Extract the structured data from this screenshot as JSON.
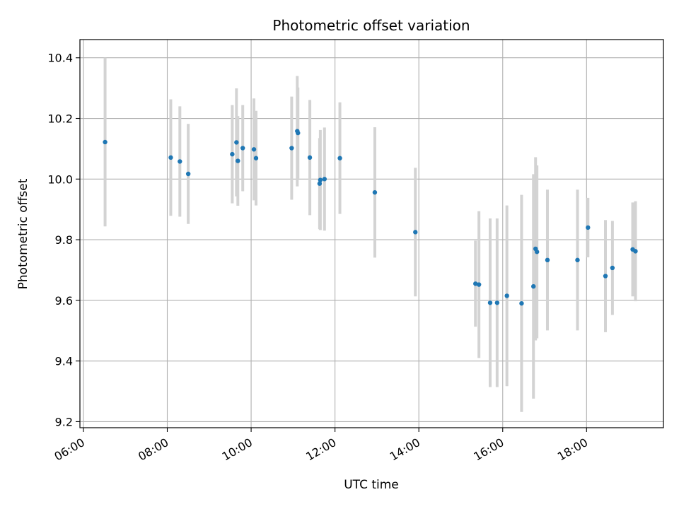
{
  "chart_data": {
    "type": "scatter",
    "title": "Photometric offset variation",
    "xlabel": "UTC time",
    "ylabel": "Photometric offset",
    "x_ticks": [
      "06:00",
      "08:00",
      "10:00",
      "12:00",
      "14:00",
      "16:00",
      "18:00"
    ],
    "y_ticks": [
      "9.2",
      "9.4",
      "9.6",
      "9.8",
      "10.0",
      "10.2",
      "10.4"
    ],
    "xlim": [
      "05:55",
      "19:50"
    ],
    "ylim": [
      9.18,
      10.46
    ],
    "grid": true,
    "colors": {
      "point": "#1f77b4",
      "errorbar": "#d3d3d3",
      "grid": "#b0b0b0",
      "axes": "#000000"
    },
    "series": [
      {
        "points": [
          {
            "x": "06:31",
            "y": 10.122,
            "err": 0.278
          },
          {
            "x": "08:05",
            "y": 10.071,
            "err": 0.192
          },
          {
            "x": "08:18",
            "y": 10.058,
            "err": 0.182
          },
          {
            "x": "08:30",
            "y": 10.017,
            "err": 0.165
          },
          {
            "x": "09:33",
            "y": 10.082,
            "err": 0.162
          },
          {
            "x": "09:39",
            "y": 10.121,
            "err": 0.178
          },
          {
            "x": "09:41",
            "y": 10.06,
            "err": 0.148
          },
          {
            "x": "09:48",
            "y": 10.102,
            "err": 0.142
          },
          {
            "x": "10:04",
            "y": 10.098,
            "err": 0.168
          },
          {
            "x": "10:07",
            "y": 10.069,
            "err": 0.156
          },
          {
            "x": "10:58",
            "y": 10.102,
            "err": 0.17
          },
          {
            "x": "11:06",
            "y": 10.158,
            "err": 0.182
          },
          {
            "x": "11:07",
            "y": 10.152,
            "err": 0.15
          },
          {
            "x": "11:24",
            "y": 10.071,
            "err": 0.19
          },
          {
            "x": "11:38",
            "y": 9.985,
            "err": 0.15
          },
          {
            "x": "11:39",
            "y": 9.997,
            "err": 0.165
          },
          {
            "x": "11:45",
            "y": 10.0,
            "err": 0.17
          },
          {
            "x": "12:07",
            "y": 10.069,
            "err": 0.184
          },
          {
            "x": "12:57",
            "y": 9.956,
            "err": 0.215
          },
          {
            "x": "13:55",
            "y": 9.825,
            "err": 0.212
          },
          {
            "x": "15:21",
            "y": 9.655,
            "err": 0.142
          },
          {
            "x": "15:26",
            "y": 9.652,
            "err": 0.242
          },
          {
            "x": "15:42",
            "y": 9.592,
            "err": 0.278
          },
          {
            "x": "15:52",
            "y": 9.592,
            "err": 0.278
          },
          {
            "x": "16:06",
            "y": 9.615,
            "err": 0.298
          },
          {
            "x": "16:27",
            "y": 9.59,
            "err": 0.358
          },
          {
            "x": "16:44",
            "y": 9.646,
            "err": 0.37
          },
          {
            "x": "16:47",
            "y": 9.77,
            "err": 0.302
          },
          {
            "x": "16:49",
            "y": 9.76,
            "err": 0.285
          },
          {
            "x": "17:04",
            "y": 9.733,
            "err": 0.232
          },
          {
            "x": "17:47",
            "y": 9.733,
            "err": 0.232
          },
          {
            "x": "18:02",
            "y": 9.84,
            "err": 0.098
          },
          {
            "x": "18:27",
            "y": 9.68,
            "err": 0.185
          },
          {
            "x": "18:37",
            "y": 9.707,
            "err": 0.155
          },
          {
            "x": "19:06",
            "y": 9.768,
            "err": 0.155
          },
          {
            "x": "19:10",
            "y": 9.762,
            "err": 0.165
          }
        ]
      }
    ]
  }
}
